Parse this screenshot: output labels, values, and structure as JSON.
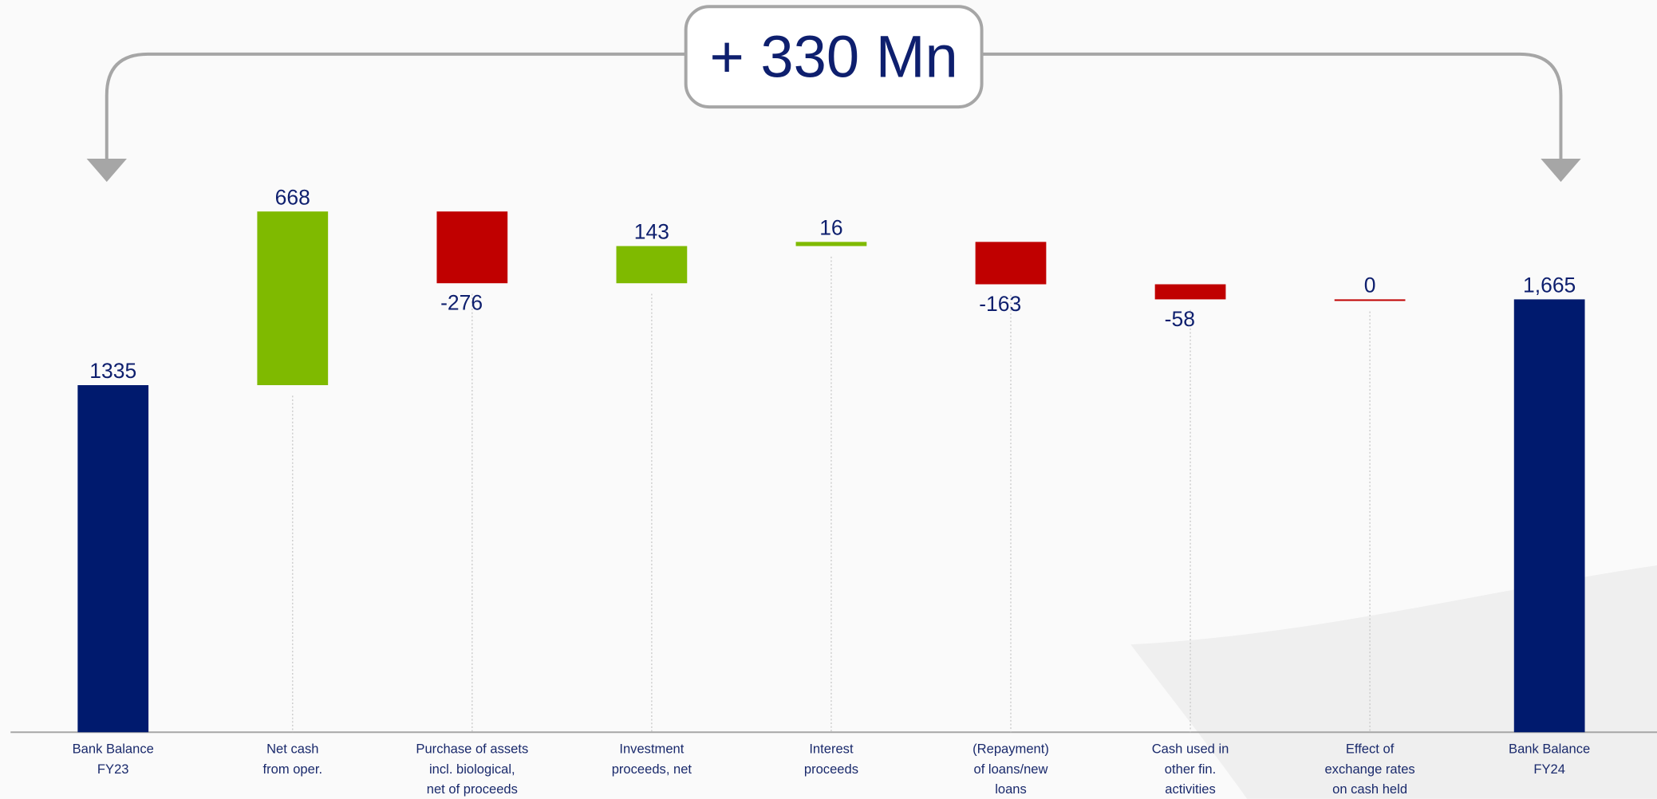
{
  "chart_data": {
    "type": "waterfall",
    "annotation": "+ 330 Mn",
    "categories": [
      "Bank Balance\nFY23",
      "Net cash\nfrom oper.",
      "Purchase of assets\nincl. biological,\nnet of proceeds",
      "Investment\nproceeds, net",
      "Interest\nproceeds",
      "(Repayment)\nof loans/new\nloans",
      "Cash used in\nother fin.\nactivities",
      "Effect of\nexchange rates\non cash held",
      "Bank Balance\nFY24"
    ],
    "values": [
      1335,
      668,
      -276,
      143,
      16,
      -163,
      -58,
      0,
      1665
    ],
    "value_labels": [
      "1335",
      "668",
      "-276",
      "143",
      "16",
      "-163",
      "-58",
      "0",
      "1,665"
    ],
    "is_total": [
      true,
      false,
      false,
      false,
      false,
      false,
      false,
      false,
      true
    ],
    "colors": {
      "total": "#001a6e",
      "increase": "#7fba00",
      "decrease": "#c00000"
    }
  }
}
